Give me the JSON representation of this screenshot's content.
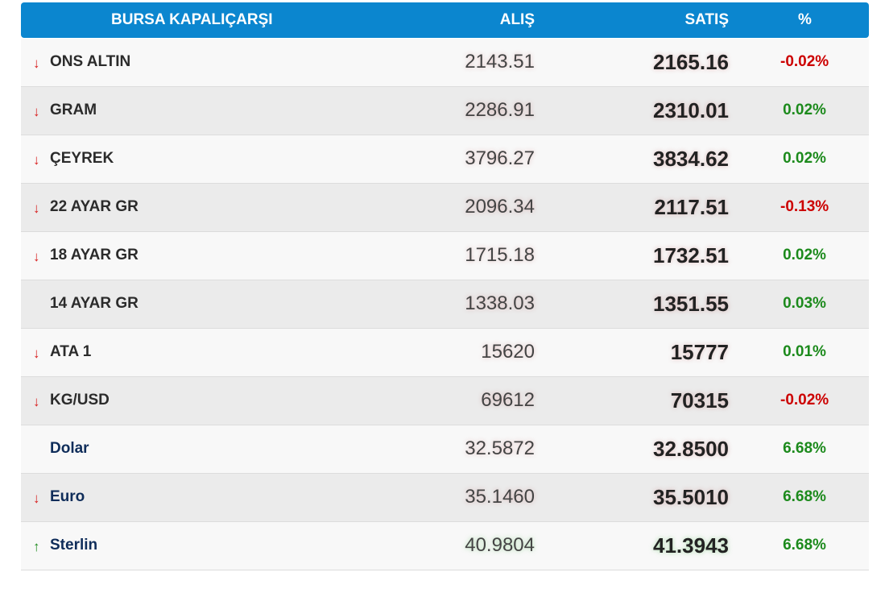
{
  "header": {
    "name": "BURSA KAPALIÇARŞI",
    "buy": "ALIŞ",
    "sell": "SATIŞ",
    "percent": "%"
  },
  "rows": [
    {
      "arrow": "↓",
      "trend": "down",
      "name": "ONS ALTIN",
      "buy": "2143.51",
      "sell": "2165.16",
      "change": "-0.02%",
      "sign": "neg",
      "kind": "gold"
    },
    {
      "arrow": "↓",
      "trend": "down",
      "name": "GRAM",
      "buy": "2286.91",
      "sell": "2310.01",
      "change": "0.02%",
      "sign": "pos",
      "kind": "gold"
    },
    {
      "arrow": "↓",
      "trend": "down",
      "name": "ÇEYREK",
      "buy": "3796.27",
      "sell": "3834.62",
      "change": "0.02%",
      "sign": "pos",
      "kind": "gold"
    },
    {
      "arrow": "↓",
      "trend": "down",
      "name": "22 AYAR GR",
      "buy": "2096.34",
      "sell": "2117.51",
      "change": "-0.13%",
      "sign": "neg",
      "kind": "gold"
    },
    {
      "arrow": "↓",
      "trend": "down",
      "name": "18 AYAR GR",
      "buy": "1715.18",
      "sell": "1732.51",
      "change": "0.02%",
      "sign": "pos",
      "kind": "gold"
    },
    {
      "arrow": "",
      "trend": "none",
      "name": "14 AYAR GR",
      "buy": "1338.03",
      "sell": "1351.55",
      "change": "0.03%",
      "sign": "pos",
      "kind": "gold"
    },
    {
      "arrow": "↓",
      "trend": "down",
      "name": "ATA 1",
      "buy": "15620",
      "sell": "15777",
      "change": "0.01%",
      "sign": "pos",
      "kind": "gold"
    },
    {
      "arrow": "↓",
      "trend": "down",
      "name": "KG/USD",
      "buy": "69612",
      "sell": "70315",
      "change": "-0.02%",
      "sign": "neg",
      "kind": "gold"
    },
    {
      "arrow": "",
      "trend": "none",
      "name": "Dolar",
      "buy": "32.5872",
      "sell": "32.8500",
      "change": "6.68%",
      "sign": "pos",
      "kind": "fx"
    },
    {
      "arrow": "↓",
      "trend": "down",
      "name": "Euro",
      "buy": "35.1460",
      "sell": "35.5010",
      "change": "6.68%",
      "sign": "pos",
      "kind": "fx"
    },
    {
      "arrow": "↑",
      "trend": "up",
      "name": "Sterlin",
      "buy": "40.9804",
      "sell": "41.3943",
      "change": "6.68%",
      "sign": "pos",
      "kind": "fx"
    }
  ],
  "colors": {
    "header_bg": "#0b86cf",
    "negative": "#cc0000",
    "positive": "#1c8a1c",
    "down_arrow": "#d81e1e",
    "up_arrow": "#1c8a1c"
  }
}
